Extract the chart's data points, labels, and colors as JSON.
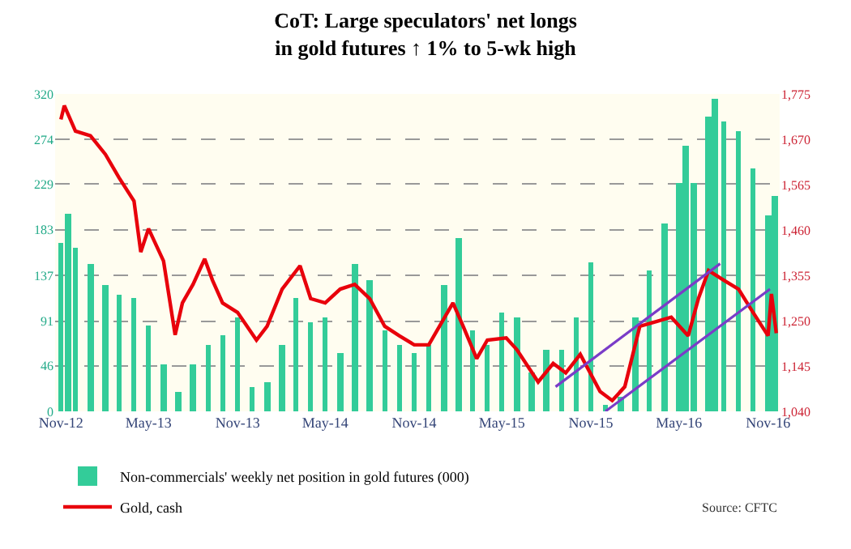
{
  "chart_data": {
    "type": "bar",
    "title": "CoT: Large speculators' net longs\nin gold futures ↑ 1% to 5-wk high",
    "annotations": [
      "Source: CFTC"
    ],
    "xlim": [
      "2012-10-20",
      "2016-11-25"
    ],
    "xticks": [
      {
        "value": "2012-11-01",
        "label": "Nov-12"
      },
      {
        "value": "2013-05-01",
        "label": "May-13"
      },
      {
        "value": "2013-11-01",
        "label": "Nov-13"
      },
      {
        "value": "2014-05-01",
        "label": "May-14"
      },
      {
        "value": "2014-11-01",
        "label": "Nov-14"
      },
      {
        "value": "2015-05-01",
        "label": "May-15"
      },
      {
        "value": "2015-11-01",
        "label": "Nov-15"
      },
      {
        "value": "2016-05-01",
        "label": "May-16"
      },
      {
        "value": "2016-11-01",
        "label": "Nov-16"
      }
    ],
    "ylim": [
      0,
      320
    ],
    "yticks": [
      0,
      46,
      91,
      137,
      183,
      229,
      274,
      320
    ],
    "y2lim": [
      1040,
      1775
    ],
    "y2ticks": [
      {
        "value": 1040,
        "label": "1,040"
      },
      {
        "value": 1145,
        "label": "1,145"
      },
      {
        "value": 1250,
        "label": "1,250"
      },
      {
        "value": 1355,
        "label": "1,355"
      },
      {
        "value": 1460,
        "label": "1,460"
      },
      {
        "value": 1565,
        "label": "1,565"
      },
      {
        "value": 1670,
        "label": "1,670"
      },
      {
        "value": 1775,
        "label": "1,775"
      }
    ],
    "grid": "y",
    "legend": "bottom left",
    "series": [
      {
        "name": "Non-commercials' weekly net position in gold futures (000)",
        "color": "#33cc99",
        "x": [
          "2012-11-01",
          "2012-11-15",
          "2012-12-01",
          "2013-01-01",
          "2013-02-01",
          "2013-03-01",
          "2013-04-01",
          "2013-05-01",
          "2013-06-01",
          "2013-07-01",
          "2013-08-01",
          "2013-09-01",
          "2013-10-01",
          "2013-11-01",
          "2013-12-01",
          "2014-01-01",
          "2014-02-01",
          "2014-03-01",
          "2014-04-01",
          "2014-05-01",
          "2014-06-01",
          "2014-07-01",
          "2014-08-01",
          "2014-09-01",
          "2014-10-01",
          "2014-11-01",
          "2014-12-01",
          "2015-01-01",
          "2015-02-01",
          "2015-03-01",
          "2015-04-01",
          "2015-05-01",
          "2015-06-01",
          "2015-07-01",
          "2015-08-01",
          "2015-09-01",
          "2015-10-01",
          "2015-11-01",
          "2015-12-01",
          "2016-01-01",
          "2016-02-01",
          "2016-03-01",
          "2016-04-01",
          "2016-05-01",
          "2016-05-15",
          "2016-06-01",
          "2016-07-01",
          "2016-07-15",
          "2016-08-01",
          "2016-09-01",
          "2016-10-01",
          "2016-11-01",
          "2016-11-15"
        ],
        "values": [
          170,
          200,
          165,
          149,
          128,
          118,
          114,
          86,
          48,
          20,
          48,
          67,
          76,
          95,
          25,
          30,
          67,
          114,
          90,
          95,
          58,
          149,
          133,
          81,
          67,
          58,
          67,
          128,
          175,
          81,
          67,
          100,
          95,
          39,
          62,
          62,
          95,
          151,
          6,
          15,
          95,
          142,
          189,
          231,
          268,
          231,
          297,
          315,
          292,
          283,
          245,
          198,
          217
        ]
      },
      {
        "name": "Gold, cash",
        "type": "line",
        "axis": "y2",
        "color": "#e8000b",
        "x": [
          "2012-11-01",
          "2012-11-08",
          "2012-12-01",
          "2013-01-01",
          "2013-02-01",
          "2013-03-01",
          "2013-04-01",
          "2013-04-15",
          "2013-05-01",
          "2013-06-01",
          "2013-06-25",
          "2013-07-10",
          "2013-08-01",
          "2013-08-25",
          "2013-09-10",
          "2013-10-01",
          "2013-11-01",
          "2013-12-10",
          "2014-01-01",
          "2014-02-01",
          "2014-03-10",
          "2014-04-01",
          "2014-05-01",
          "2014-06-01",
          "2014-07-01",
          "2014-08-01",
          "2014-09-01",
          "2014-10-01",
          "2014-11-01",
          "2014-12-01",
          "2015-01-20",
          "2015-02-10",
          "2015-03-10",
          "2015-04-01",
          "2015-05-10",
          "2015-06-01",
          "2015-07-15",
          "2015-08-15",
          "2015-09-10",
          "2015-10-10",
          "2015-11-20",
          "2015-12-15",
          "2016-01-10",
          "2016-02-10",
          "2016-03-15",
          "2016-04-15",
          "2016-05-20",
          "2016-06-10",
          "2016-07-01",
          "2016-08-01",
          "2016-09-01",
          "2016-10-01",
          "2016-11-01",
          "2016-11-08",
          "2016-11-18"
        ],
        "values": [
          1716,
          1748,
          1689,
          1678,
          1635,
          1581,
          1527,
          1409,
          1463,
          1388,
          1217,
          1291,
          1334,
          1393,
          1344,
          1291,
          1269,
          1205,
          1237,
          1323,
          1377,
          1301,
          1291,
          1323,
          1334,
          1301,
          1237,
          1215,
          1194,
          1194,
          1291,
          1237,
          1162,
          1205,
          1210,
          1183,
          1108,
          1151,
          1129,
          1172,
          1086,
          1065,
          1097,
          1237,
          1248,
          1258,
          1215,
          1301,
          1366,
          1344,
          1323,
          1269,
          1215,
          1312,
          1221
        ]
      },
      {
        "type": "line",
        "axis": "y2",
        "color": "#7a3cc8",
        "x": [
          "2015-08-20",
          "2016-07-25"
        ],
        "values": [
          1097,
          1382
        ]
      },
      {
        "type": "line",
        "axis": "y2",
        "color": "#7a3cc8",
        "x": [
          "2015-12-01",
          "2016-11-05"
        ],
        "values": [
          1040,
          1323
        ]
      }
    ]
  }
}
